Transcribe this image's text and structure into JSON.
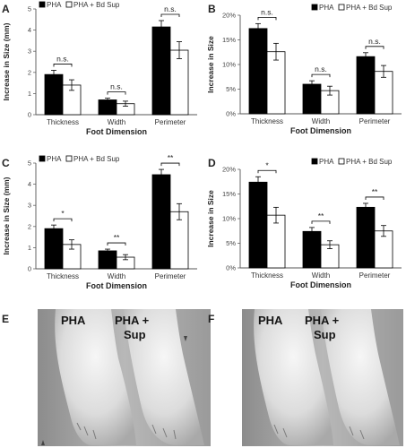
{
  "chart_data": [
    {
      "panel": "A",
      "type": "bar",
      "categories": [
        "Thickness",
        "Width",
        "Perimeter"
      ],
      "xlabel": "Foot Dimension",
      "ylabel": "Increase in Size (mm)",
      "ylim": [
        0,
        5
      ],
      "yticks": [
        "0",
        "1",
        "2",
        "3",
        "4",
        "5"
      ],
      "legend": "top-left",
      "series": [
        {
          "name": "PHA",
          "values": [
            1.9,
            0.7,
            4.15
          ],
          "errors": [
            0.2,
            0.08,
            0.3
          ],
          "color": "#000000"
        },
        {
          "name": "PHA + Bd Sup",
          "values": [
            1.4,
            0.52,
            3.05
          ],
          "errors": [
            0.25,
            0.12,
            0.4
          ],
          "color": "#ffffff"
        }
      ],
      "significance": [
        "n.s.",
        "n.s.",
        "n.s."
      ]
    },
    {
      "panel": "B",
      "type": "bar",
      "categories": [
        "Thickness",
        "Width",
        "Perimeter"
      ],
      "xlabel": "Foot Dimension",
      "ylabel": "Increase in Size",
      "ylim": [
        0,
        20
      ],
      "yticks": [
        "0%",
        "5%",
        "10%",
        "15%",
        "20%"
      ],
      "legend": "top-right",
      "series": [
        {
          "name": "PHA",
          "values": [
            17.3,
            6.0,
            11.6
          ],
          "errors": [
            1.0,
            0.7,
            0.8
          ],
          "color": "#000000"
        },
        {
          "name": "PHA + Bd Sup",
          "values": [
            12.6,
            4.7,
            8.6
          ],
          "errors": [
            1.7,
            0.9,
            1.2
          ],
          "color": "#ffffff"
        }
      ],
      "significance": [
        "n.s.",
        "n.s.",
        "n.s."
      ]
    },
    {
      "panel": "C",
      "type": "bar",
      "categories": [
        "Thickness",
        "Width",
        "Perimeter"
      ],
      "xlabel": "Foot Dimension",
      "ylabel": "Increase in Size (mm)",
      "ylim": [
        0,
        5
      ],
      "yticks": [
        "0",
        "1",
        "2",
        "3",
        "4",
        "5"
      ],
      "legend": "top-left",
      "series": [
        {
          "name": "PHA",
          "values": [
            1.9,
            0.85,
            4.45
          ],
          "errors": [
            0.17,
            0.08,
            0.25
          ],
          "color": "#000000"
        },
        {
          "name": "PHA + Bd Sup",
          "values": [
            1.15,
            0.55,
            2.7
          ],
          "errors": [
            0.22,
            0.12,
            0.38
          ],
          "color": "#ffffff"
        }
      ],
      "significance": [
        "*",
        "**",
        "**"
      ]
    },
    {
      "panel": "D",
      "type": "bar",
      "categories": [
        "Thickness",
        "Width",
        "Perimeter"
      ],
      "xlabel": "Foot Dimension",
      "ylabel": "Increase in Size",
      "ylim": [
        0,
        20
      ],
      "yticks": [
        "0%",
        "5%",
        "10%",
        "15%",
        "20%"
      ],
      "legend": "top-right",
      "series": [
        {
          "name": "PHA",
          "values": [
            17.4,
            7.4,
            12.3
          ],
          "errors": [
            1.1,
            0.8,
            0.8
          ],
          "color": "#000000"
        },
        {
          "name": "PHA + Bd Sup",
          "values": [
            10.7,
            4.7,
            7.5
          ],
          "errors": [
            1.6,
            0.8,
            1.1
          ],
          "color": "#ffffff"
        }
      ],
      "significance": [
        "*",
        "**",
        "**"
      ]
    }
  ],
  "photos": [
    {
      "panel": "E",
      "label_left": "PHA",
      "label_right_line1": "PHA +",
      "label_right_line2": "Sup"
    },
    {
      "panel": "F",
      "label_left": "PHA",
      "label_right_line1": "PHA +",
      "label_right_line2": "Sup"
    }
  ]
}
